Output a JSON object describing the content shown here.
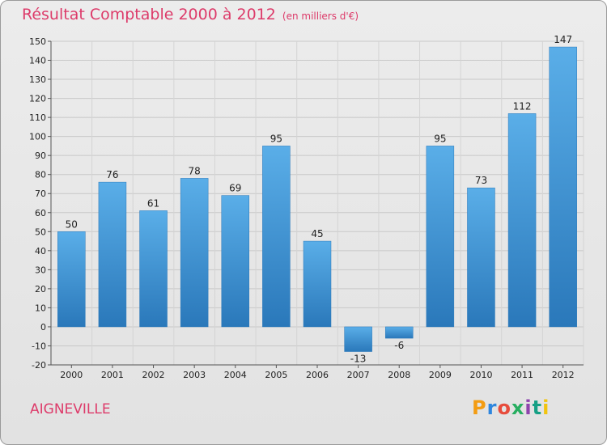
{
  "header": {
    "title": "Résultat Comptable 2000 à 2012",
    "subtitle": "(en milliers d'€)"
  },
  "footer": {
    "commune": "AIGNEVILLE",
    "logo": {
      "letters": [
        "P",
        "r",
        "o",
        "x",
        "i",
        "t",
        "i"
      ],
      "colors": [
        "#f39c12",
        "#2e86de",
        "#e74c3c",
        "#27ae60",
        "#8e44ad",
        "#16a085",
        "#f1c40f"
      ]
    }
  },
  "chart_data": {
    "type": "bar",
    "title": "Résultat Comptable 2000 à 2012",
    "subtitle": "(en milliers d'€)",
    "categories": [
      "2000",
      "2001",
      "2002",
      "2003",
      "2004",
      "2005",
      "2006",
      "2007",
      "2008",
      "2009",
      "2010",
      "2011",
      "2012"
    ],
    "values": [
      50,
      76,
      61,
      78,
      69,
      95,
      45,
      -13,
      -6,
      95,
      73,
      112,
      147
    ],
    "ylim": [
      -20,
      150
    ],
    "yticks": [
      -20,
      -10,
      0,
      10,
      20,
      30,
      40,
      50,
      60,
      70,
      80,
      90,
      100,
      110,
      120,
      130,
      140,
      150
    ],
    "grid": true,
    "bar_color": "#3d8fd3"
  }
}
